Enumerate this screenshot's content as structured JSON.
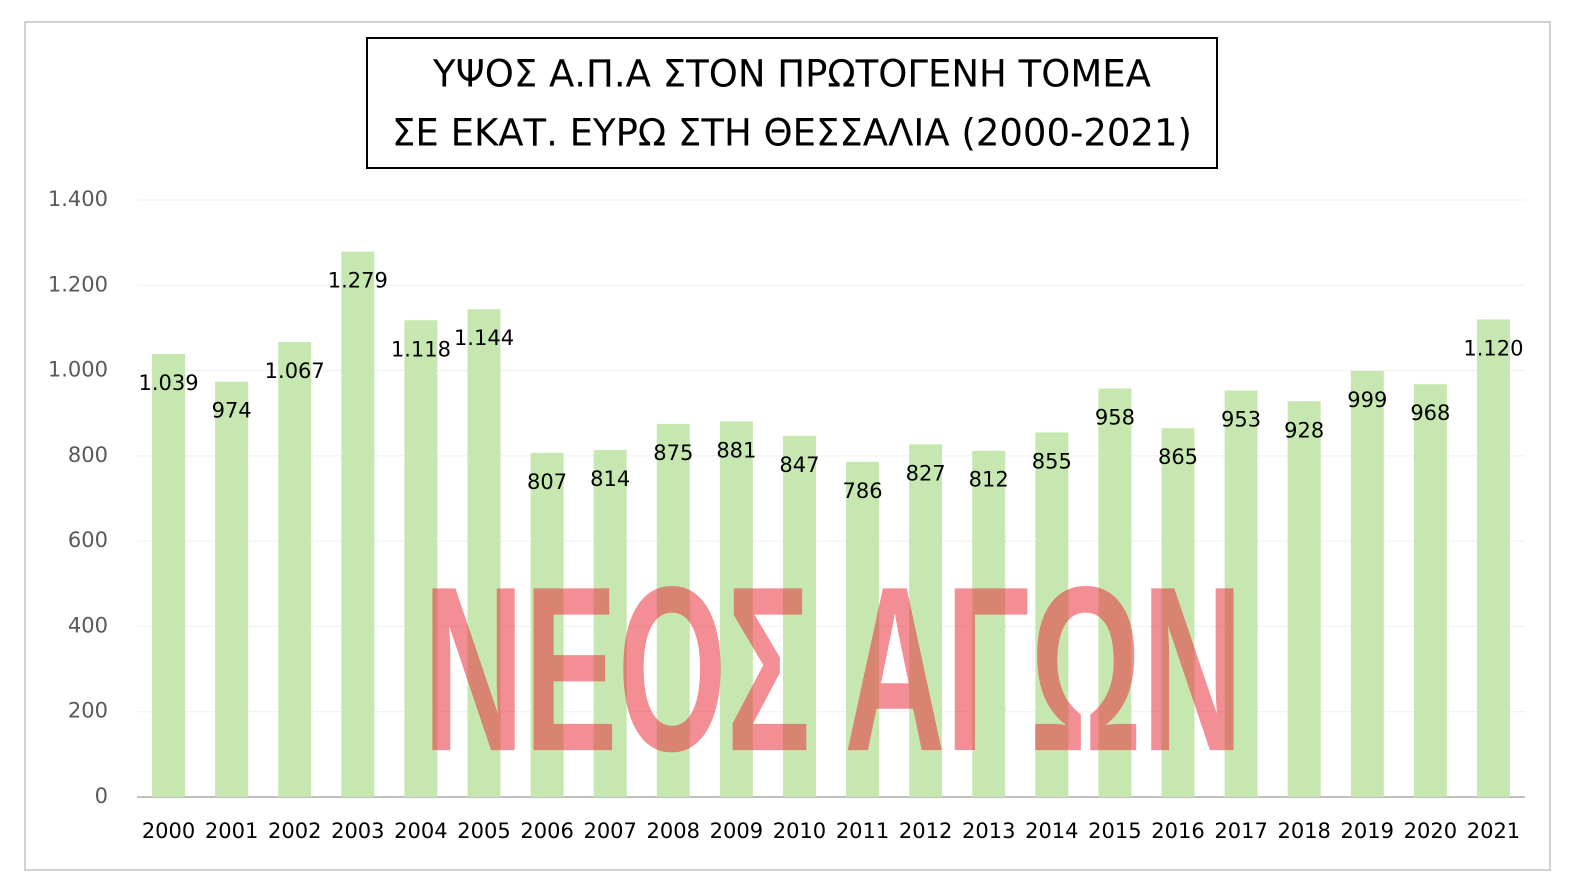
{
  "chart_data": {
    "type": "bar",
    "title": [
      "ΥΨΟΣ Α.Π.Α ΣΤΟΝ ΠΡΩΤΟΓΕΝΗ ΤΟΜΕΑ",
      "ΣΕ ΕΚΑΤ. ΕΥΡΩ ΣΤΗ ΘΕΣΣΑΛΙΑ (2000-2021)"
    ],
    "watermark": "ΝΕΟΣ ΑΓΩΝ",
    "categories": [
      "2000",
      "2001",
      "2002",
      "2003",
      "2004",
      "2005",
      "2006",
      "2007",
      "2008",
      "2009",
      "2010",
      "2011",
      "2012",
      "2013",
      "2014",
      "2015",
      "2016",
      "2017",
      "2018",
      "2019",
      "2020",
      "2021"
    ],
    "values": [
      1039,
      974,
      1067,
      1279,
      1118,
      1144,
      807,
      814,
      875,
      881,
      847,
      786,
      827,
      812,
      855,
      958,
      865,
      953,
      928,
      999,
      968,
      1120
    ],
    "value_labels": [
      "1.039",
      "974",
      "1.067",
      "1.279",
      "1.118",
      "1.144",
      "807",
      "814",
      "875",
      "881",
      "847",
      "786",
      "827",
      "812",
      "855",
      "958",
      "865",
      "953",
      "928",
      "999",
      "968",
      "1.120"
    ],
    "color": "#c6e8b0",
    "ylim": [
      0,
      1400
    ],
    "yticks": [
      0,
      200,
      400,
      600,
      800,
      {
        "value": 1000,
        "label": "1.000"
      },
      {
        "value": 1200,
        "label": "1.200"
      },
      {
        "value": 1400,
        "label": "1.400"
      }
    ],
    "grid": true
  }
}
